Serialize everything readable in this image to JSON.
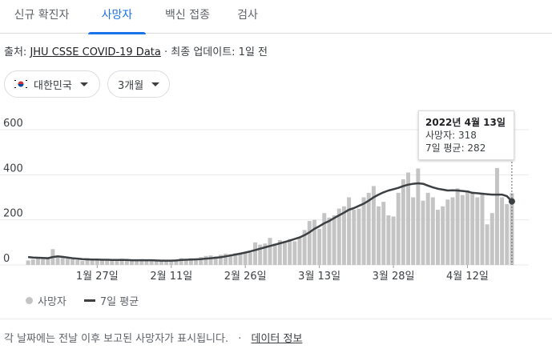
{
  "tabs": [
    {
      "label": "신규 확진자",
      "active": false
    },
    {
      "label": "사망자",
      "active": true
    },
    {
      "label": "백신 접종",
      "active": false
    },
    {
      "label": "검사",
      "active": false
    }
  ],
  "source": {
    "prefix": "출처: ",
    "link": "JHU CSSE COVID-19 Data",
    "separator": " · ",
    "updated": "최종 업데이트: 1일 전"
  },
  "filters": {
    "country": "대한민국",
    "period": "3개월"
  },
  "tooltip": {
    "date": "2022년 4월 13일",
    "deaths": "사망자: 318",
    "avg": "7일 평균: 282"
  },
  "legend": {
    "bars": "사망자",
    "line": "7일 평균"
  },
  "footer": {
    "note": "각 날짜에는 전날 이후 보고된 사망자가 표시됩니다.",
    "separator": "·",
    "link": "데이터 정보"
  },
  "colors": {
    "accent": "#1a73e8",
    "bar": "#c4c4c4",
    "line": "#3c4043"
  },
  "chart_data": {
    "type": "bar",
    "ylim": [
      0,
      600
    ],
    "yticks": [
      0,
      200,
      400,
      600
    ],
    "xtick_labels": [
      {
        "label": "1월 27일",
        "index": 14
      },
      {
        "label": "2월 11일",
        "index": 29
      },
      {
        "label": "2월 26일",
        "index": 44
      },
      {
        "label": "3월 13일",
        "index": 59
      },
      {
        "label": "3월 28일",
        "index": 74
      },
      {
        "label": "4월 12일",
        "index": 89
      }
    ],
    "series": [
      {
        "name": "사망자",
        "type": "bar",
        "values": [
          20,
          25,
          30,
          28,
          35,
          70,
          40,
          32,
          28,
          25,
          22,
          18,
          30,
          20,
          22,
          24,
          22,
          20,
          26,
          28,
          25,
          22,
          24,
          26,
          20,
          22,
          18,
          16,
          20,
          22,
          24,
          30,
          26,
          30,
          28,
          35,
          40,
          42,
          38,
          45,
          50,
          48,
          52,
          55,
          55,
          55,
          100,
          90,
          95,
          120,
          95,
          110,
          100,
          115,
          105,
          120,
          155,
          195,
          200,
          160,
          230,
          210,
          220,
          250,
          260,
          300,
          245,
          250,
          300,
          320,
          350,
          260,
          280,
          220,
          215,
          320,
          380,
          410,
          300,
          428,
          285,
          320,
          300,
          245,
          260,
          290,
          300,
          340,
          310,
          330,
          320,
          300,
          320,
          180,
          230,
          430,
          300,
          270,
          318
        ],
        "note": "bars drawn; last bar = 318"
      },
      {
        "name": "7일 평균",
        "type": "line",
        "values": [
          35,
          33,
          32,
          31,
          30,
          35,
          38,
          36,
          33,
          30,
          28,
          26,
          25,
          24,
          24,
          23,
          23,
          22,
          22,
          22,
          22,
          21,
          21,
          21,
          21,
          21,
          20,
          19,
          19,
          19,
          20,
          22,
          23,
          24,
          25,
          26,
          28,
          30,
          32,
          34,
          38,
          42,
          46,
          50,
          55,
          60,
          66,
          72,
          78,
          84,
          90,
          96,
          102,
          108,
          115,
          122,
          132,
          145,
          160,
          172,
          185,
          195,
          208,
          220,
          232,
          245,
          252,
          262,
          272,
          285,
          300,
          312,
          322,
          330,
          336,
          342,
          350,
          356,
          360,
          362,
          360,
          352,
          344,
          338,
          334,
          330,
          331,
          330,
          328,
          326,
          320,
          318,
          316,
          314,
          312,
          312,
          312,
          305,
          282
        ]
      }
    ]
  }
}
